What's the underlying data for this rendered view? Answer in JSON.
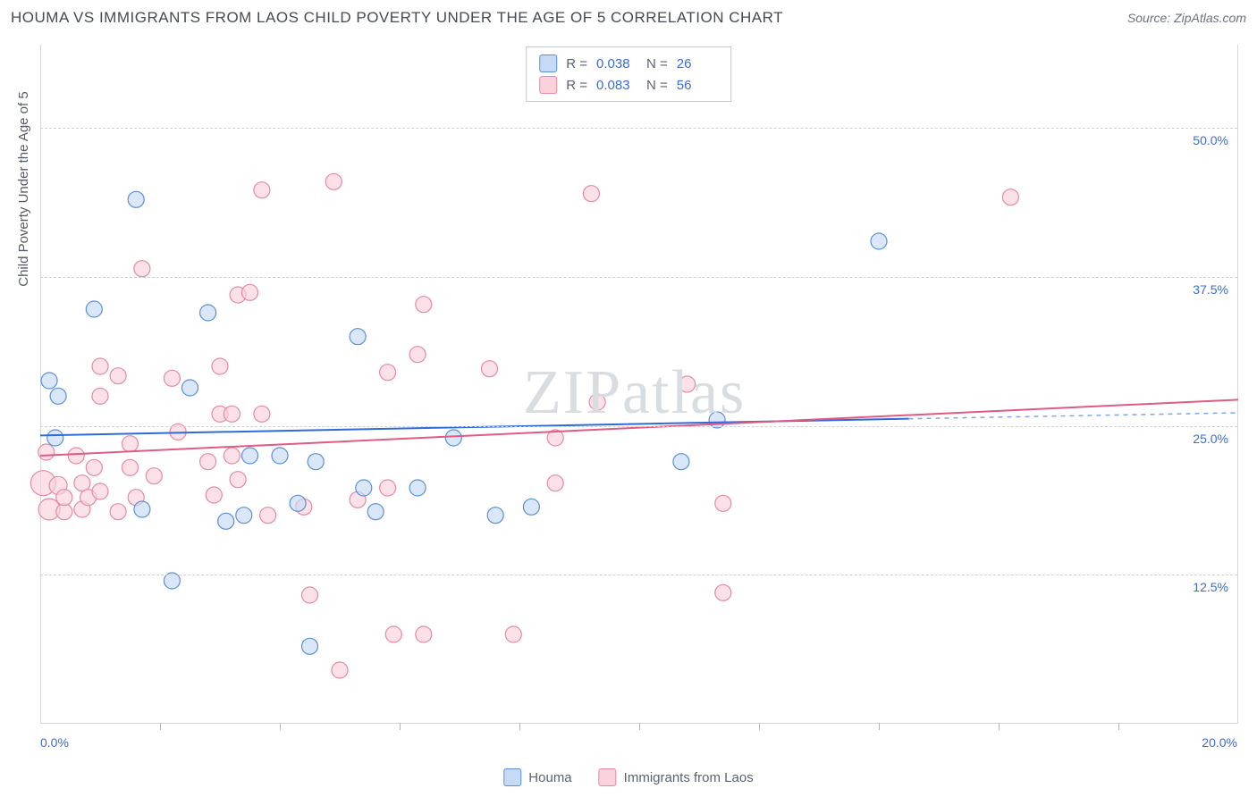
{
  "title": "HOUMA VS IMMIGRANTS FROM LAOS CHILD POVERTY UNDER THE AGE OF 5 CORRELATION CHART",
  "source_label": "Source: ZipAtlas.com",
  "y_axis_title": "Child Poverty Under the Age of 5",
  "watermark": "ZIPatlas",
  "chart": {
    "type": "scatter",
    "xlim": [
      0,
      20
    ],
    "ylim": [
      0,
      57
    ],
    "x_ticks_major": [
      0,
      20
    ],
    "x_ticks_minor": [
      2,
      4,
      6,
      8,
      10,
      12,
      14,
      16,
      18
    ],
    "y_ticks": [
      12.5,
      25.0,
      37.5,
      50.0
    ],
    "y_tick_labels": [
      "12.5%",
      "25.0%",
      "37.5%",
      "50.0%"
    ],
    "x_tick_labels": [
      "0.0%",
      "20.0%"
    ],
    "grid_color": "#d0d0d0",
    "background": "#ffffff",
    "series": {
      "houma": {
        "label": "Houma",
        "fill": "#c6daf5",
        "stroke": "#5a8fd8",
        "r_value": "0.038",
        "n_value": "26",
        "regression": {
          "x1": 0,
          "y1": 24.2,
          "x2": 14.5,
          "y2": 25.6,
          "color": "#2e6bd8",
          "width": 2,
          "dash_x1": 14.5,
          "dash_x2": 20,
          "dash_y1": 25.6,
          "dash_y2": 26.1
        },
        "points": [
          {
            "x": 0.15,
            "y": 28.8,
            "r": 9
          },
          {
            "x": 0.25,
            "y": 24.0,
            "r": 9
          },
          {
            "x": 0.3,
            "y": 27.5,
            "r": 9
          },
          {
            "x": 0.9,
            "y": 34.8,
            "r": 9
          },
          {
            "x": 1.6,
            "y": 44.0,
            "r": 9
          },
          {
            "x": 1.7,
            "y": 18.0,
            "r": 9
          },
          {
            "x": 2.2,
            "y": 12.0,
            "r": 9
          },
          {
            "x": 2.5,
            "y": 28.2,
            "r": 9
          },
          {
            "x": 2.8,
            "y": 34.5,
            "r": 9
          },
          {
            "x": 3.1,
            "y": 17.0,
            "r": 9
          },
          {
            "x": 3.4,
            "y": 17.5,
            "r": 9
          },
          {
            "x": 3.5,
            "y": 22.5,
            "r": 9
          },
          {
            "x": 4.0,
            "y": 22.5,
            "r": 9
          },
          {
            "x": 4.3,
            "y": 18.5,
            "r": 9
          },
          {
            "x": 4.5,
            "y": 6.5,
            "r": 9
          },
          {
            "x": 4.6,
            "y": 22.0,
            "r": 9
          },
          {
            "x": 5.3,
            "y": 32.5,
            "r": 9
          },
          {
            "x": 5.4,
            "y": 19.8,
            "r": 9
          },
          {
            "x": 5.6,
            "y": 17.8,
            "r": 9
          },
          {
            "x": 6.3,
            "y": 19.8,
            "r": 9
          },
          {
            "x": 6.9,
            "y": 24.0,
            "r": 9
          },
          {
            "x": 7.6,
            "y": 17.5,
            "r": 9
          },
          {
            "x": 8.2,
            "y": 18.2,
            "r": 9
          },
          {
            "x": 10.7,
            "y": 22.0,
            "r": 9
          },
          {
            "x": 11.3,
            "y": 25.5,
            "r": 9
          },
          {
            "x": 14.0,
            "y": 40.5,
            "r": 9
          }
        ]
      },
      "laos": {
        "label": "Immigrants from Laos",
        "fill": "#fad2db",
        "stroke": "#e589a1",
        "r_value": "0.083",
        "n_value": "56",
        "regression": {
          "x1": 0,
          "y1": 22.5,
          "x2": 20,
          "y2": 27.2,
          "color": "#df5b82",
          "width": 2
        },
        "points": [
          {
            "x": 0.05,
            "y": 20.2,
            "r": 14
          },
          {
            "x": 0.1,
            "y": 22.8,
            "r": 9
          },
          {
            "x": 0.15,
            "y": 18.0,
            "r": 12
          },
          {
            "x": 0.3,
            "y": 20.0,
            "r": 10
          },
          {
            "x": 0.4,
            "y": 17.8,
            "r": 9
          },
          {
            "x": 0.4,
            "y": 19.0,
            "r": 9
          },
          {
            "x": 0.6,
            "y": 22.5,
            "r": 9
          },
          {
            "x": 0.7,
            "y": 18.0,
            "r": 9
          },
          {
            "x": 0.7,
            "y": 20.2,
            "r": 9
          },
          {
            "x": 0.8,
            "y": 19.0,
            "r": 9
          },
          {
            "x": 0.9,
            "y": 21.5,
            "r": 9
          },
          {
            "x": 1.0,
            "y": 19.5,
            "r": 9
          },
          {
            "x": 1.0,
            "y": 27.5,
            "r": 9
          },
          {
            "x": 1.0,
            "y": 30.0,
            "r": 9
          },
          {
            "x": 1.3,
            "y": 17.8,
            "r": 9
          },
          {
            "x": 1.3,
            "y": 29.2,
            "r": 9
          },
          {
            "x": 1.5,
            "y": 21.5,
            "r": 9
          },
          {
            "x": 1.5,
            "y": 23.5,
            "r": 9
          },
          {
            "x": 1.6,
            "y": 19.0,
            "r": 9
          },
          {
            "x": 1.7,
            "y": 38.2,
            "r": 9
          },
          {
            "x": 1.9,
            "y": 20.8,
            "r": 9
          },
          {
            "x": 2.2,
            "y": 29.0,
            "r": 9
          },
          {
            "x": 2.3,
            "y": 24.5,
            "r": 9
          },
          {
            "x": 2.8,
            "y": 22.0,
            "r": 9
          },
          {
            "x": 2.9,
            "y": 19.2,
            "r": 9
          },
          {
            "x": 3.0,
            "y": 26.0,
            "r": 9
          },
          {
            "x": 3.0,
            "y": 30.0,
            "r": 9
          },
          {
            "x": 3.2,
            "y": 22.5,
            "r": 9
          },
          {
            "x": 3.2,
            "y": 26.0,
            "r": 9
          },
          {
            "x": 3.3,
            "y": 36.0,
            "r": 9
          },
          {
            "x": 3.3,
            "y": 20.5,
            "r": 9
          },
          {
            "x": 3.5,
            "y": 36.2,
            "r": 9
          },
          {
            "x": 3.7,
            "y": 26.0,
            "r": 9
          },
          {
            "x": 3.7,
            "y": 44.8,
            "r": 9
          },
          {
            "x": 3.8,
            "y": 17.5,
            "r": 9
          },
          {
            "x": 4.4,
            "y": 18.2,
            "r": 9
          },
          {
            "x": 4.5,
            "y": 10.8,
            "r": 9
          },
          {
            "x": 4.9,
            "y": 45.5,
            "r": 9
          },
          {
            "x": 5.0,
            "y": 4.5,
            "r": 9
          },
          {
            "x": 5.3,
            "y": 18.8,
            "r": 9
          },
          {
            "x": 5.8,
            "y": 29.5,
            "r": 9
          },
          {
            "x": 5.8,
            "y": 19.8,
            "r": 9
          },
          {
            "x": 5.9,
            "y": 7.5,
            "r": 9
          },
          {
            "x": 6.3,
            "y": 31.0,
            "r": 9
          },
          {
            "x": 6.4,
            "y": 7.5,
            "r": 9
          },
          {
            "x": 6.4,
            "y": 35.2,
            "r": 9
          },
          {
            "x": 7.5,
            "y": 29.8,
            "r": 9
          },
          {
            "x": 7.9,
            "y": 7.5,
            "r": 9
          },
          {
            "x": 8.6,
            "y": 20.2,
            "r": 9
          },
          {
            "x": 8.6,
            "y": 24.0,
            "r": 9
          },
          {
            "x": 9.2,
            "y": 44.5,
            "r": 9
          },
          {
            "x": 9.3,
            "y": 27.0,
            "r": 9
          },
          {
            "x": 10.8,
            "y": 28.5,
            "r": 9
          },
          {
            "x": 11.4,
            "y": 18.5,
            "r": 9
          },
          {
            "x": 11.4,
            "y": 11.0,
            "r": 9
          },
          {
            "x": 16.2,
            "y": 44.2,
            "r": 9
          }
        ]
      }
    }
  },
  "legend_top": {
    "r_label": "R =",
    "n_label": "N ="
  }
}
